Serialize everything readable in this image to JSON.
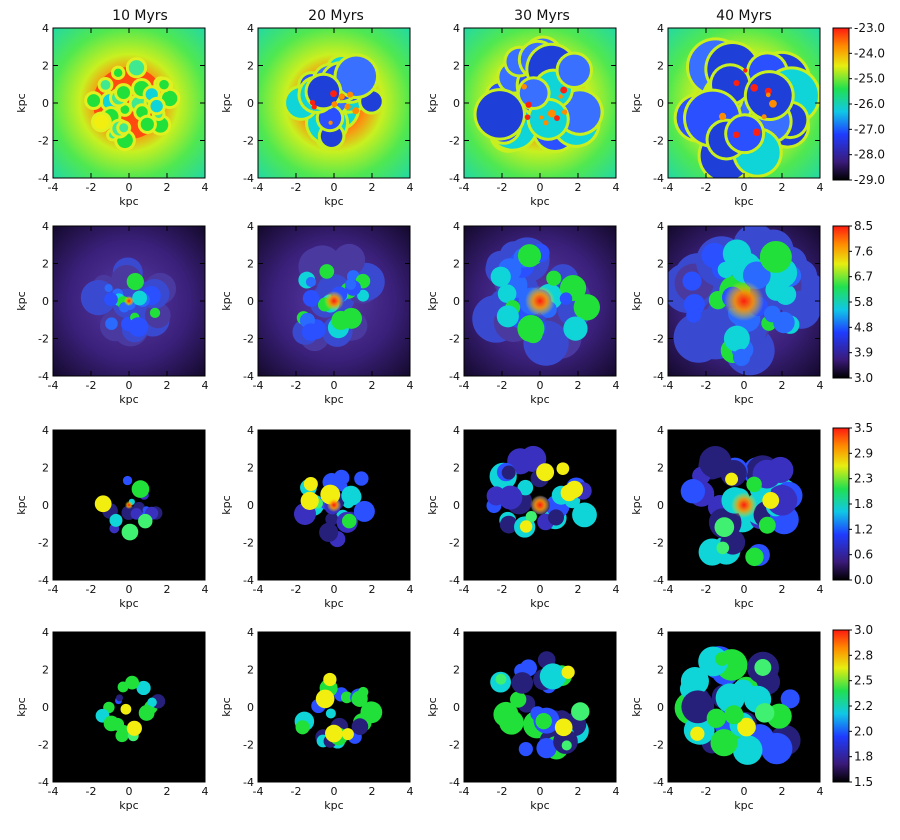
{
  "column_titles": [
    "10 Myrs",
    "20 Myrs",
    "30 Myrs",
    "40 Myrs"
  ],
  "axis": {
    "xlabel": "kpc",
    "ylabel": "kpc",
    "ticks": [
      "-4",
      "-2",
      "0",
      "2",
      "4"
    ]
  },
  "colorbars": [
    {
      "labels": [
        "-23.0",
        "-24.0",
        "-25.0",
        "-26.0",
        "-27.0",
        "-28.0",
        "-29.0"
      ]
    },
    {
      "labels": [
        "8.5",
        "7.6",
        "6.7",
        "5.8",
        "4.8",
        "3.9",
        "3.0"
      ]
    },
    {
      "labels": [
        "3.5",
        "2.9",
        "2.3",
        "1.8",
        "1.2",
        "0.6",
        "0.0"
      ]
    },
    {
      "labels": [
        "3.0",
        "2.8",
        "2.5",
        "2.2",
        "2.0",
        "1.8",
        "1.5"
      ]
    }
  ],
  "colors": {
    "red": "#ff2010",
    "orange": "#ff8c00",
    "yellow": "#f2ee10",
    "green": "#22e03a",
    "cyan": "#0fd4d8",
    "blue": "#2a50ff",
    "navy": "#26207a",
    "purple": "#4a2a8a",
    "black": "#000000"
  }
}
